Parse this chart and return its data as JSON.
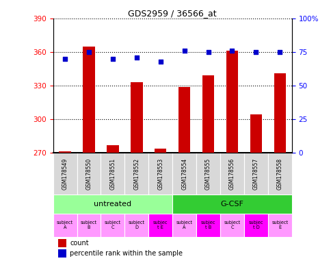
{
  "title": "GDS2959 / 36566_at",
  "samples": [
    "GSM178549",
    "GSM178550",
    "GSM178551",
    "GSM178552",
    "GSM178553",
    "GSM178554",
    "GSM178555",
    "GSM178556",
    "GSM178557",
    "GSM178558"
  ],
  "counts": [
    271,
    365,
    277,
    333,
    274,
    329,
    339,
    361,
    304,
    341
  ],
  "percentile_ranks": [
    70,
    75,
    70,
    71,
    68,
    76,
    75,
    76,
    75,
    75
  ],
  "ylim_left": [
    270,
    390
  ],
  "ylim_right": [
    0,
    100
  ],
  "yticks_left": [
    270,
    300,
    330,
    360,
    390
  ],
  "yticks_right": [
    0,
    25,
    50,
    75,
    100
  ],
  "ytick_labels_right": [
    "0",
    "25",
    "50",
    "75",
    "100%"
  ],
  "bar_color": "#cc0000",
  "dot_color": "#0000cc",
  "agent_groups": [
    {
      "label": "untreated",
      "start": 0,
      "end": 5,
      "color": "#99ff99"
    },
    {
      "label": "G-CSF",
      "start": 5,
      "end": 10,
      "color": "#33cc33"
    }
  ],
  "individual_labels": [
    "subject\nA",
    "subject\nB",
    "subject\nC",
    "subject\nD",
    "subjec\nt E",
    "subject\nA",
    "subjec\nt B",
    "subject\nC",
    "subjec\nt D",
    "subject\nE"
  ],
  "individual_highlight": [
    4,
    6,
    8
  ],
  "individual_color_normal": "#ff99ff",
  "individual_color_highlight": "#ff00ff",
  "gsm_box_color": "#d8d8d8",
  "legend_count_color": "#cc0000",
  "legend_pct_color": "#0000cc"
}
